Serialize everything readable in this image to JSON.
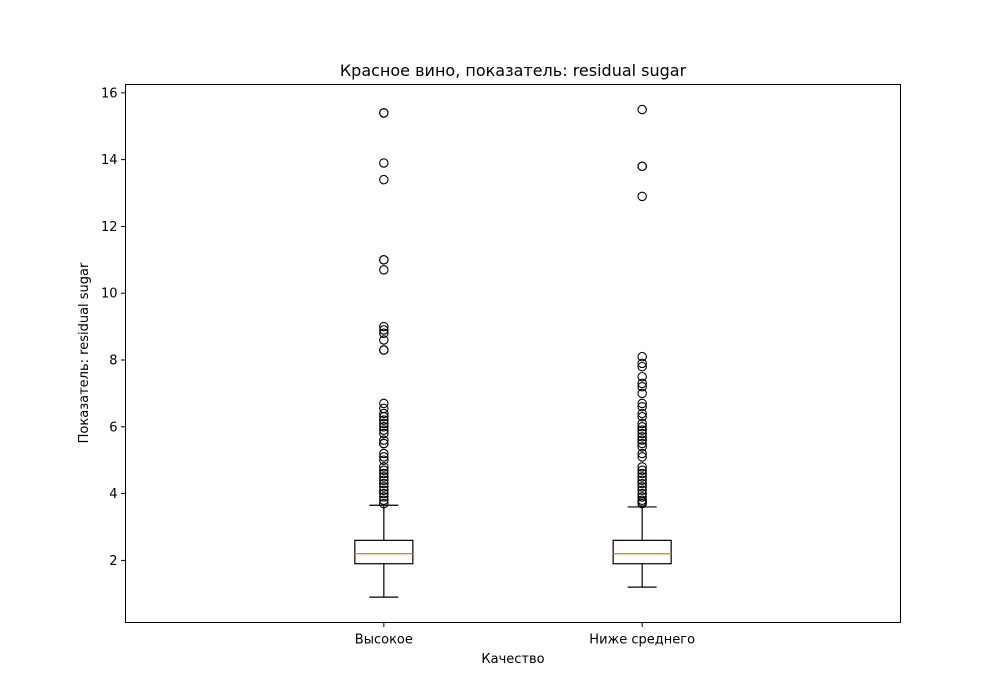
{
  "chart_data": {
    "type": "box",
    "title": "Красное вино, показатель: residual sugar",
    "xlabel": "Качество",
    "ylabel": "Показатель: residual sugar",
    "ylim": [
      0.14,
      16.25
    ],
    "yticks": [
      2,
      4,
      6,
      8,
      10,
      12,
      14,
      16
    ],
    "grid": false,
    "categories": [
      "Высокое",
      "Ниже среднего"
    ],
    "series": [
      {
        "category": "Высокое",
        "whisker_low": 0.9,
        "q1": 1.9,
        "median": 2.2,
        "q3": 2.6,
        "whisker_high": 3.65,
        "outliers": [
          15.4,
          15.4,
          13.9,
          13.4,
          11.0,
          11.0,
          10.7,
          9.0,
          8.9,
          8.8,
          8.6,
          8.3,
          8.3,
          6.7,
          6.55,
          6.4,
          6.3,
          6.2,
          6.1,
          6.0,
          5.9,
          5.8,
          5.6,
          5.5,
          5.5,
          5.2,
          5.1,
          5.0,
          4.8,
          4.7,
          4.6,
          4.5,
          4.4,
          4.3,
          4.2,
          4.1,
          4.0,
          3.9,
          3.8,
          3.7
        ]
      },
      {
        "category": "Ниже среднего",
        "whisker_low": 1.2,
        "q1": 1.9,
        "median": 2.2,
        "q3": 2.6,
        "whisker_high": 3.6,
        "outliers": [
          15.5,
          13.8,
          13.8,
          12.9,
          8.1,
          7.9,
          7.8,
          7.5,
          7.3,
          7.2,
          7.0,
          6.7,
          6.6,
          6.4,
          6.3,
          6.1,
          6.0,
          5.9,
          5.8,
          5.7,
          5.6,
          5.5,
          5.4,
          5.2,
          5.1,
          4.8,
          4.7,
          4.6,
          4.5,
          4.4,
          4.3,
          4.2,
          4.1,
          4.0,
          3.9,
          3.8,
          3.75,
          3.7
        ]
      }
    ],
    "colors": {
      "box": "#000000",
      "median": "#ff7f0e",
      "flier": "#000000"
    }
  }
}
